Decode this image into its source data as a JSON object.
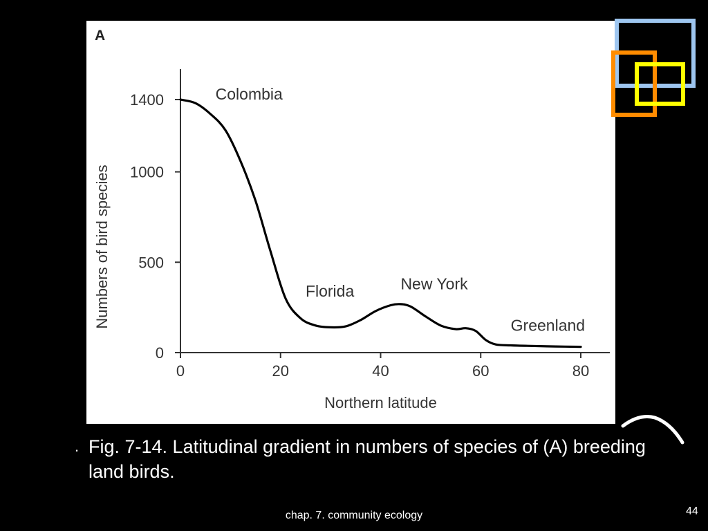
{
  "slide": {
    "caption_bullet": ".",
    "caption": "Fig. 7-14. Latitudinal gradient in numbers of species of (A) breeding land birds.",
    "footer": "chap. 7. community ecology",
    "page_number": "44",
    "decor_colors": [
      "#9ec6f0",
      "#ff8c00",
      "#ffff00"
    ]
  },
  "chart_data": {
    "type": "line",
    "panel_label": "A",
    "xlabel": "Northern latitude",
    "ylabel": "Numbers of bird species",
    "xlim": [
      0,
      85
    ],
    "ylim": [
      0,
      1550
    ],
    "x_ticks": [
      0,
      20,
      40,
      60,
      80
    ],
    "y_ticks": [
      0,
      500,
      1000,
      1400
    ],
    "grid": false,
    "legend": "none",
    "series": [
      {
        "color": "#000000",
        "x": [
          0,
          3,
          6,
          9,
          12,
          15,
          18,
          21,
          24,
          27,
          30,
          33,
          36,
          39,
          42,
          44,
          46,
          49,
          52,
          55,
          57,
          59,
          61,
          63,
          66,
          70,
          75,
          80
        ],
        "y": [
          1400,
          1380,
          1320,
          1230,
          1060,
          840,
          560,
          300,
          190,
          150,
          140,
          145,
          180,
          230,
          262,
          268,
          255,
          200,
          150,
          130,
          135,
          120,
          70,
          45,
          40,
          37,
          34,
          32
        ]
      }
    ],
    "annotations": [
      {
        "text": "Colombia",
        "x": 7,
        "y": 1400
      },
      {
        "text": "Florida",
        "x": 25,
        "y": 310
      },
      {
        "text": "New York",
        "x": 44,
        "y": 350
      },
      {
        "text": "Greenland",
        "x": 66,
        "y": 120
      }
    ]
  }
}
